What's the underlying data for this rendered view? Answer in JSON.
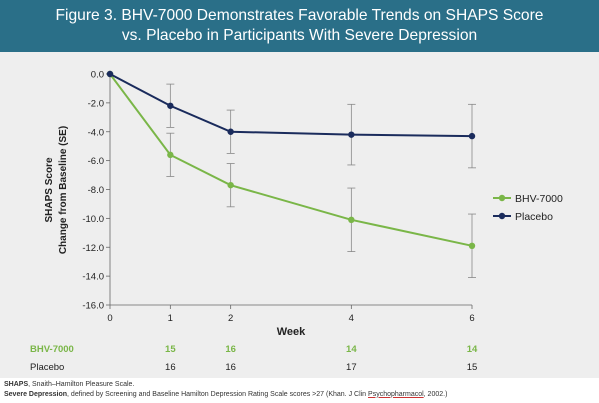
{
  "title": {
    "line1": "Figure 3. BHV-7000 Demonstrates Favorable Trends on SHAPS Score",
    "line2": "vs. Placebo in Participants With Severe Depression"
  },
  "colors": {
    "header_bg": "#2a6f88",
    "panel_bg": "#eeeeee",
    "bhv7000": "#7ab648",
    "placebo": "#1a2b5c",
    "error_bar": "#888888"
  },
  "chart_data": {
    "type": "line",
    "xlabel": "Week",
    "ylabel_line1": "SHAPS Score",
    "ylabel_line2": "Change from Baseline (SE)",
    "ylim": [
      -16,
      0
    ],
    "yticks": [
      0,
      -2,
      -4,
      -6,
      -8,
      -10,
      -12,
      -14,
      -16
    ],
    "ytick_labels": [
      "0.0",
      "-2.0",
      "-4.0",
      "-6.0",
      "-8.0",
      "-10.0",
      "-12.0",
      "-14.0",
      "-16.0"
    ],
    "xticks": [
      0,
      1,
      2,
      4,
      6
    ],
    "xtick_labels": [
      "0",
      "1",
      "2",
      "4",
      "6"
    ],
    "xlim": [
      0,
      6
    ],
    "grid": false,
    "legend_position": "right",
    "series": [
      {
        "name": "BHV-7000",
        "color": "#7ab648",
        "x": [
          0,
          1,
          2,
          4,
          6
        ],
        "y": [
          0,
          -5.6,
          -7.7,
          -10.1,
          -11.9
        ],
        "se": [
          0,
          1.5,
          1.5,
          2.2,
          2.2
        ]
      },
      {
        "name": "Placebo",
        "color": "#1a2b5c",
        "x": [
          0,
          1,
          2,
          4,
          6
        ],
        "y": [
          0,
          -2.2,
          -4.0,
          -4.2,
          -4.3
        ],
        "se": [
          0,
          1.5,
          1.5,
          2.1,
          2.2
        ]
      }
    ],
    "n_table": {
      "weeks": [
        1,
        2,
        4,
        6
      ],
      "rows": [
        {
          "label": "BHV-7000",
          "values": [
            "15",
            "16",
            "14",
            "14"
          ],
          "color": "#7ab648",
          "bold": true
        },
        {
          "label": "Placebo",
          "values": [
            "16",
            "16",
            "17",
            "15"
          ],
          "color": "#222222",
          "bold": false
        }
      ]
    }
  },
  "footnotes": {
    "line1_bold": "SHAPS",
    "line1_rest": ", Snaith–Hamilton Pleasure Scale.",
    "line2_bold": "Severe Depression",
    "line2_rest": ", defined by Screening and Baseline Hamilton Depression Rating Scale scores >27 (Khan. J Clin ",
    "line2_journal": "Psychopharmacol",
    "line2_end": ", 2002.)"
  }
}
